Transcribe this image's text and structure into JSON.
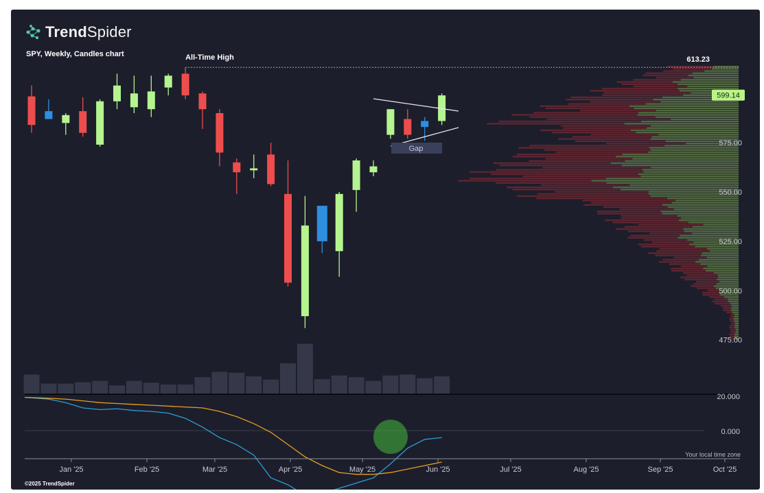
{
  "brand": {
    "name_bold": "Trend",
    "name_light": "Spider"
  },
  "chart_subtitle": "SPY, Weekly, Candles chart",
  "copyright": "©2025 TrendSpider",
  "timezone_note": "Your local time zone",
  "colors": {
    "background": "#1d1e2b",
    "up": "#b5f590",
    "down": "#ee4d4d",
    "neutral": "#2f8ee0",
    "volume": "#353849",
    "macd": "#2a9fd8",
    "signal": "#e3a024",
    "highlight": "#3fae3a",
    "gap_box": "#3a3f5c",
    "price_tag": "#b8f585"
  },
  "chart_data": [
    {
      "type": "candlestick",
      "symbol": "SPY",
      "timeframe": "Weekly",
      "x_tick_labels": [
        "Jan '25",
        "Feb '25",
        "Mar '25",
        "Apr '25",
        "May '25",
        "Jun '25",
        "Jul '25",
        "Aug '25",
        "Sep '25",
        "Oct '25"
      ],
      "y_tick_labels": [
        "575.00",
        "550.00",
        "525.00",
        "500.00",
        "475.00"
      ],
      "y_ticks": [
        575,
        550,
        525,
        500,
        475
      ],
      "ylim": [
        470,
        614
      ],
      "grid": false,
      "candles": [
        {
          "o": 598.5,
          "h": 604,
          "l": 580,
          "c": 584,
          "color": "down"
        },
        {
          "o": 591,
          "h": 597,
          "l": 587,
          "c": 587,
          "color": "neutral"
        },
        {
          "o": 585,
          "h": 590,
          "l": 579,
          "c": 589,
          "color": "up"
        },
        {
          "o": 591,
          "h": 598,
          "l": 578,
          "c": 580,
          "color": "down"
        },
        {
          "o": 574,
          "h": 597,
          "l": 573,
          "c": 596,
          "color": "up"
        },
        {
          "o": 596,
          "h": 610,
          "l": 592,
          "c": 604,
          "color": "up"
        },
        {
          "o": 600,
          "h": 609,
          "l": 590,
          "c": 593,
          "color": "up"
        },
        {
          "o": 592,
          "h": 609,
          "l": 588,
          "c": 601,
          "color": "up"
        },
        {
          "o": 603,
          "h": 610,
          "l": 599,
          "c": 609,
          "color": "up"
        },
        {
          "o": 610,
          "h": 613.23,
          "l": 597,
          "c": 599,
          "color": "down"
        },
        {
          "o": 600,
          "h": 601,
          "l": 582,
          "c": 592,
          "color": "down"
        },
        {
          "o": 590,
          "h": 592,
          "l": 563,
          "c": 570,
          "color": "down"
        },
        {
          "o": 565,
          "h": 567,
          "l": 549,
          "c": 560,
          "color": "down"
        },
        {
          "o": 562,
          "h": 569,
          "l": 557,
          "c": 561,
          "color": "up"
        },
        {
          "o": 569,
          "h": 575,
          "l": 553,
          "c": 554,
          "color": "down"
        },
        {
          "o": 549,
          "h": 566,
          "l": 502,
          "c": 504,
          "color": "down"
        },
        {
          "o": 487,
          "h": 548,
          "l": 481,
          "c": 533,
          "color": "up"
        },
        {
          "o": 543,
          "h": 543,
          "l": 519,
          "c": 525,
          "color": "neutral"
        },
        {
          "o": 520,
          "h": 550,
          "l": 507,
          "c": 549,
          "color": "up"
        },
        {
          "o": 551,
          "h": 567,
          "l": 540,
          "c": 566,
          "color": "up"
        },
        {
          "o": 560,
          "h": 566,
          "l": 558,
          "c": 563,
          "color": "up"
        },
        {
          "o": 579,
          "h": 592,
          "l": 577,
          "c": 592,
          "color": "up"
        },
        {
          "o": 587,
          "h": 592,
          "l": 577,
          "c": 579,
          "color": "down"
        },
        {
          "o": 583,
          "h": 588,
          "l": 576,
          "c": 586,
          "color": "neutral"
        },
        {
          "o": 586,
          "h": 600,
          "l": 584,
          "c": 599,
          "color": "up"
        }
      ],
      "volume": [
        42,
        22,
        22,
        25,
        28,
        18,
        28,
        24,
        20,
        20,
        36,
        48,
        46,
        38,
        31,
        67,
        110,
        32,
        40,
        36,
        28,
        40,
        42,
        34,
        38
      ],
      "annotations": {
        "all_time_high_label": "All-Time High",
        "all_time_high_value": "613.23",
        "all_time_high_price": 613.23,
        "last_price_label": "599.14",
        "last_price": 599.14,
        "gap_label": "Gap"
      }
    },
    {
      "type": "line",
      "name": "oscillator",
      "y_tick_labels": [
        "20.000",
        "0.000"
      ],
      "series": [
        {
          "color": "macd",
          "values": [
            19,
            18,
            16,
            13,
            12,
            12.5,
            11.5,
            11,
            10,
            7,
            2,
            -4,
            -8,
            -14,
            -27,
            -31,
            -37,
            -36,
            -33,
            -30,
            -27,
            -19,
            -10,
            -5,
            -4
          ]
        },
        {
          "color": "signal",
          "values": [
            19,
            18.5,
            18,
            17,
            16,
            15.5,
            15,
            14.5,
            14,
            13.5,
            13,
            11,
            8,
            4,
            -1,
            -8,
            -15,
            -20,
            -24,
            -25,
            -25,
            -24,
            -22,
            -20,
            -18
          ]
        }
      ]
    }
  ]
}
